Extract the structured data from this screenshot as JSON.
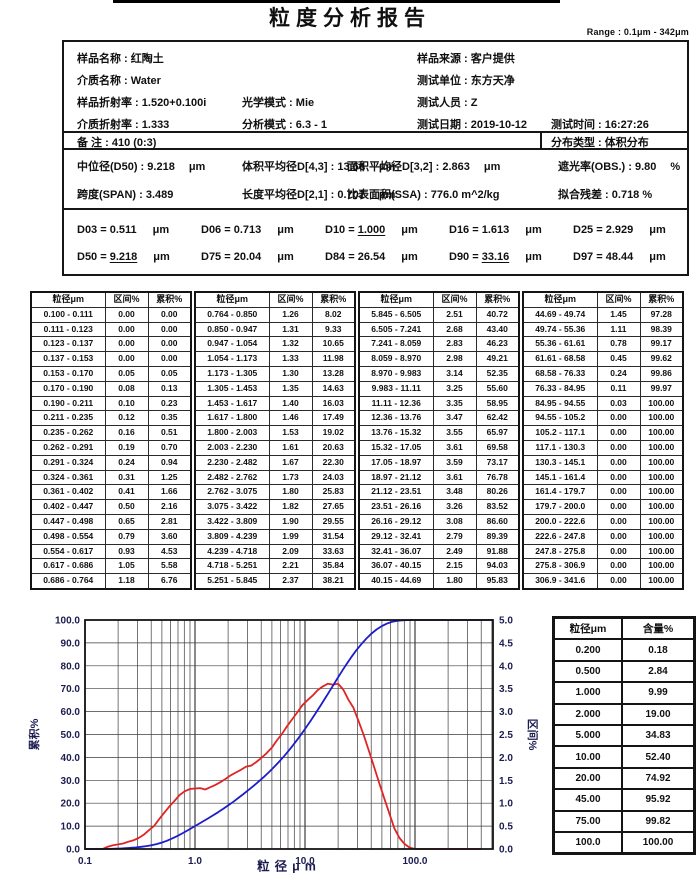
{
  "report": {
    "title": "粒度分析报告",
    "range_label": "Range : 0.1μm - 342μm"
  },
  "info": {
    "sample_name": "样品名称 : 红陶土",
    "sample_source": "样品来源 : 客户提供",
    "medium_name": "介质名称 : Water",
    "test_unit": "测试单位 : 东方天净",
    "sample_ri": "样品折射率 : 1.520+0.100i",
    "optical_mode": "光学模式 : Mie",
    "tester": "测试人员 : Z",
    "medium_ri": "介质折射率 : 1.333",
    "analysis_mode": "分析模式 : 6.3 - 1",
    "test_date": "测试日期 : 2019-10-12",
    "test_time": "测试时间 : 16:27:26",
    "remark": "备 注 :  410  (0:3)",
    "distribution_type": "分布类型 : 体积分布"
  },
  "metrics": {
    "rows": [
      [
        {
          "t": "中位径(D50) : 9.218",
          "u": "μm"
        },
        {
          "t": "体积平均径D[4,3] : 13.66",
          "u": "μm"
        },
        {
          "t": "面积平均径D[3,2] : 2.863",
          "u": "μm"
        },
        {
          "t": "遮光率(OBS.) : 9.80",
          "u": "%"
        }
      ],
      [
        {
          "t": "跨度(SPAN) : 3.489",
          "u": ""
        },
        {
          "t": "长度平均径D[2,1] : 0.701",
          "u": "μm"
        },
        {
          "t": "比表面积(SSA) : 776.0 m^2/kg",
          "u": ""
        },
        {
          "t": "拟合残差 : 0.718 %",
          "u": ""
        }
      ]
    ]
  },
  "dvalues": [
    {
      "name": "D03",
      "value": "0.511",
      "unit": "μm",
      "underline": false
    },
    {
      "name": "D06",
      "value": "0.713",
      "unit": "μm",
      "underline": false
    },
    {
      "name": "D10",
      "value": "1.000",
      "unit": "μm",
      "underline": true
    },
    {
      "name": "D16",
      "value": "1.613",
      "unit": "μm",
      "underline": false
    },
    {
      "name": "D25",
      "value": "2.929",
      "unit": "μm",
      "underline": false
    },
    {
      "name": "D50",
      "value": "9.218",
      "unit": "μm",
      "underline": true
    },
    {
      "name": "D75",
      "value": "20.04",
      "unit": "μm",
      "underline": false
    },
    {
      "name": "D84",
      "value": "26.54",
      "unit": "μm",
      "underline": false
    },
    {
      "name": "D90",
      "value": "33.16",
      "unit": "μm",
      "underline": true
    },
    {
      "name": "D97",
      "value": "48.44",
      "unit": "μm",
      "underline": false
    }
  ],
  "distribution_table": {
    "headers": [
      "粒径μm",
      "区间%",
      "累积%"
    ],
    "groups": 4,
    "rows_per_group": 19
  },
  "content_table": {
    "headers": [
      "粒径μm",
      "含量%"
    ],
    "rows": [
      [
        "0.200",
        "0.18"
      ],
      [
        "0.500",
        "2.84"
      ],
      [
        "1.000",
        "9.99"
      ],
      [
        "2.000",
        "19.00"
      ],
      [
        "5.000",
        "34.83"
      ],
      [
        "10.00",
        "52.40"
      ],
      [
        "20.00",
        "74.92"
      ],
      [
        "45.00",
        "95.92"
      ],
      [
        "75.00",
        "99.82"
      ],
      [
        "100.0",
        "100.00"
      ]
    ]
  },
  "chart_data": {
    "type": "line",
    "x_scale": "log",
    "xlabel": "粒径μm",
    "ylabel_left": "累积%",
    "ylabel_right": "区间%",
    "xlim": [
      0.1,
      512
    ],
    "ylim_left": [
      0,
      100
    ],
    "ylim_right": [
      0,
      5
    ],
    "x_tick_values": [
      0.1,
      1,
      10,
      100
    ],
    "x_tick_labels": [
      "0.1",
      "1.0",
      "10.0",
      "100.0"
    ],
    "left_tick_step": 10,
    "right_tick_step": 0.5,
    "grid": true,
    "series_colors": {
      "cumulative": "#1c1ccb",
      "interval": "#e02424"
    },
    "bins": {
      "edges": [
        "0.100",
        "0.111",
        "0.123",
        "0.137",
        "0.153",
        "0.170",
        "0.190",
        "0.211",
        "0.235",
        "0.262",
        "0.291",
        "0.324",
        "0.361",
        "0.402",
        "0.447",
        "0.498",
        "0.554",
        "0.617",
        "0.686",
        "0.764",
        "0.850",
        "0.947",
        "1.054",
        "1.173",
        "1.305",
        "1.453",
        "1.617",
        "1.800",
        "2.003",
        "2.230",
        "2.482",
        "2.762",
        "3.075",
        "3.422",
        "3.809",
        "4.239",
        "4.718",
        "5.251",
        "5.845",
        "6.505",
        "7.241",
        "8.059",
        "8.970",
        "9.983",
        "11.11",
        "12.36",
        "13.76",
        "15.32",
        "17.05",
        "18.97",
        "21.12",
        "23.51",
        "26.16",
        "29.12",
        "32.41",
        "36.07",
        "40.15",
        "44.69",
        "49.74",
        "55.36",
        "61.61",
        "68.58",
        "76.33",
        "84.95",
        "94.55",
        "105.2",
        "117.1",
        "130.3",
        "145.1",
        "161.4",
        "179.7",
        "200.0",
        "222.6",
        "247.8",
        "275.8",
        "306.9",
        "341.6"
      ],
      "interval_pct": [
        "0.00",
        "0.00",
        "0.00",
        "0.00",
        "0.05",
        "0.08",
        "0.10",
        "0.12",
        "0.16",
        "0.19",
        "0.24",
        "0.31",
        "0.41",
        "0.50",
        "0.65",
        "0.79",
        "0.93",
        "1.05",
        "1.18",
        "1.26",
        "1.31",
        "1.32",
        "1.33",
        "1.30",
        "1.35",
        "1.40",
        "1.46",
        "1.53",
        "1.61",
        "1.67",
        "1.73",
        "1.80",
        "1.82",
        "1.90",
        "1.99",
        "2.09",
        "2.21",
        "2.37",
        "2.51",
        "2.68",
        "2.83",
        "2.98",
        "3.14",
        "3.25",
        "3.35",
        "3.47",
        "3.55",
        "3.61",
        "3.59",
        "3.61",
        "3.48",
        "3.26",
        "3.08",
        "2.79",
        "2.49",
        "2.15",
        "1.80",
        "1.45",
        "1.11",
        "0.78",
        "0.45",
        "0.24",
        "0.11",
        "0.03",
        "0.00",
        "0.00",
        "0.00",
        "0.00",
        "0.00",
        "0.00",
        "0.00",
        "0.00",
        "0.00",
        "0.00",
        "0.00",
        "0.00"
      ],
      "cumulative_pct": [
        "0.00",
        "0.00",
        "0.00",
        "0.00",
        "0.05",
        "0.13",
        "0.23",
        "0.35",
        "0.51",
        "0.70",
        "0.94",
        "1.25",
        "1.66",
        "2.16",
        "2.81",
        "3.60",
        "4.53",
        "5.58",
        "6.76",
        "8.02",
        "9.33",
        "10.65",
        "11.98",
        "13.28",
        "14.63",
        "16.03",
        "17.49",
        "19.02",
        "20.63",
        "22.30",
        "24.03",
        "25.83",
        "27.65",
        "29.55",
        "31.54",
        "33.63",
        "35.84",
        "38.21",
        "40.72",
        "43.40",
        "46.23",
        "49.21",
        "52.35",
        "55.60",
        "58.95",
        "62.42",
        "65.97",
        "69.58",
        "73.17",
        "76.78",
        "80.26",
        "83.52",
        "86.60",
        "89.39",
        "91.88",
        "94.03",
        "95.83",
        "97.28",
        "98.39",
        "99.17",
        "99.62",
        "99.86",
        "99.97",
        "100.00",
        "100.00",
        "100.00",
        "100.00",
        "100.00",
        "100.00",
        "100.00",
        "100.00",
        "100.00",
        "100.00",
        "100.00",
        "100.00",
        "100.00"
      ]
    }
  }
}
